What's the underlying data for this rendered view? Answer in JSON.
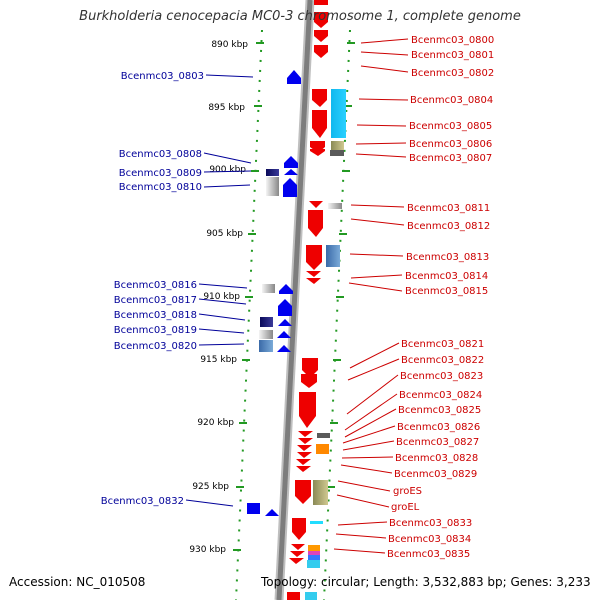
{
  "title": "Burkholderia cenocepacia MC0-3 chromosome 1, complete genome",
  "accession_text": "Accession: NC_010508",
  "topology_text": "Topology: circular; Length: 3,532,883 bp; Genes: 3,233",
  "kbp_labels": [
    "890 kbp",
    "895 kbp",
    "900 kbp",
    "905 kbp",
    "910 kbp",
    "915 kbp",
    "920 kbp",
    "925 kbp",
    "930 kbp"
  ],
  "left_genes": [
    "Bcenmc03_0803",
    "Bcenmc03_0808",
    "Bcenmc03_0809",
    "Bcenmc03_0810",
    "Bcenmc03_0816",
    "Bcenmc03_0817",
    "Bcenmc03_0818",
    "Bcenmc03_0819",
    "Bcenmc03_0820",
    "Bcenmc03_0832"
  ],
  "right_genes": [
    "Bcenmc03_0800",
    "Bcenmc03_0801",
    "Bcenmc03_0802",
    "Bcenmc03_0804",
    "Bcenmc03_0805",
    "Bcenmc03_0806",
    "Bcenmc03_0807",
    "Bcenmc03_0811",
    "Bcenmc03_0812",
    "Bcenmc03_0813",
    "Bcenmc03_0814",
    "Bcenmc03_0815",
    "Bcenmc03_0821",
    "Bcenmc03_0822",
    "Bcenmc03_0823",
    "Bcenmc03_0824",
    "Bcenmc03_0825",
    "Bcenmc03_0826",
    "Bcenmc03_0827",
    "Bcenmc03_0828",
    "Bcenmc03_0829",
    "groES",
    "groEL",
    "Bcenmc03_0833",
    "Bcenmc03_0834",
    "Bcenmc03_0835"
  ],
  "colors": {
    "forward_strand": "#0000ee",
    "reverse_strand": "#ee0000",
    "left_label": "#000099",
    "right_label": "#cc0000",
    "backbone": "#888888",
    "tick": "#228822"
  }
}
